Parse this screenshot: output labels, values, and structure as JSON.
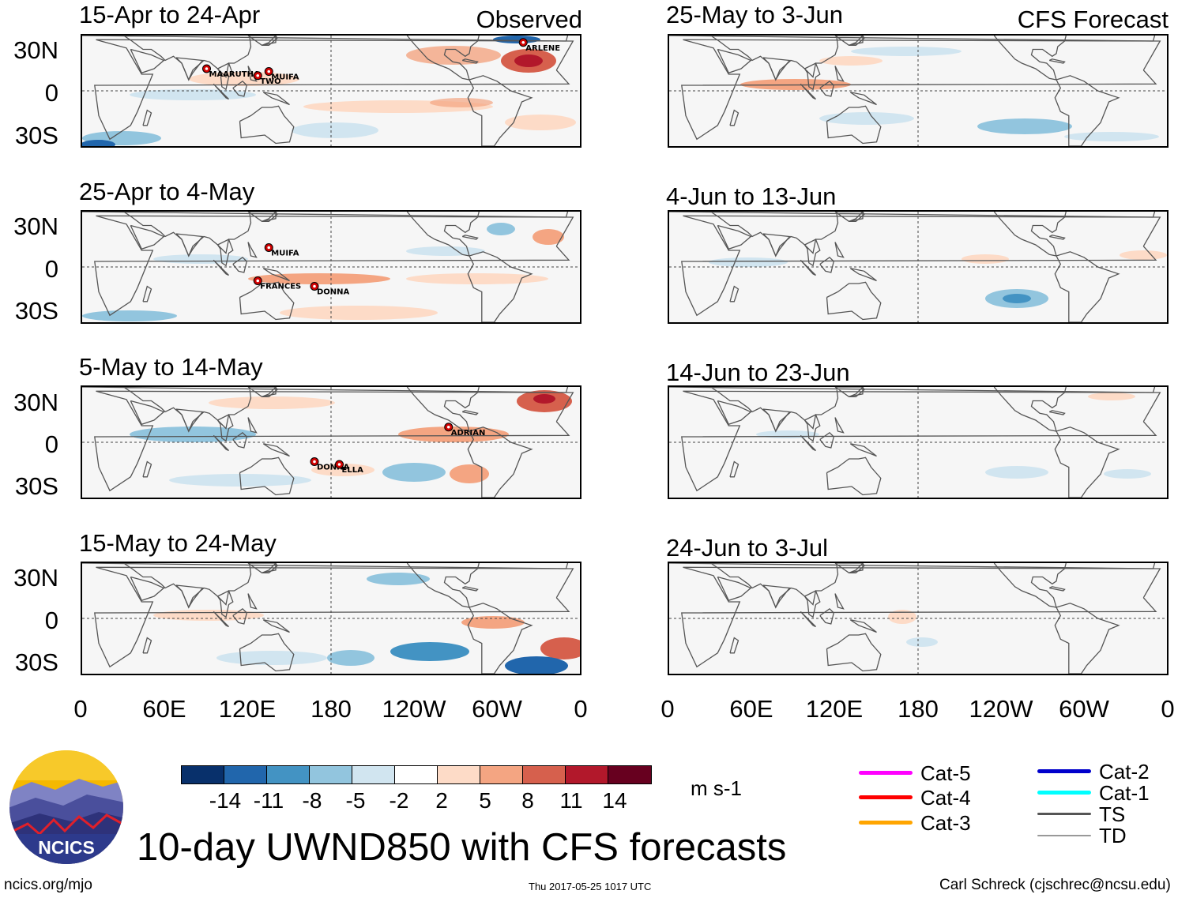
{
  "figure": {
    "title": "10-day UWND850 with CFS forecasts",
    "observed_label": "Observed",
    "forecast_label": "CFS Forecast",
    "units": "m s-1",
    "site": "ncics.org/mjo",
    "timestamp": "Thu 2017-05-25 1017 UTC",
    "author": "Carl Schreck (cjschrec@ncsu.edu)",
    "logo_text": "NCICS"
  },
  "axes": {
    "lat_labels": [
      "30N",
      "0",
      "30S"
    ],
    "lon_labels": [
      "0",
      "60E",
      "120E",
      "180",
      "120W",
      "60W",
      "0"
    ]
  },
  "observed_panels": [
    {
      "period": "15-Apr to 24-Apr",
      "storms": [
        "MAARUTHA",
        "TWO",
        "MUIFA",
        "ARLENE"
      ]
    },
    {
      "period": "25-Apr to 4-May",
      "storms": [
        "MUIFA",
        "FRANCES",
        "DONNA"
      ]
    },
    {
      "period": "5-May to 14-May",
      "storms": [
        "ADRIAN",
        "DONNA",
        "ELLA"
      ]
    },
    {
      "period": "15-May to 24-May",
      "storms": []
    }
  ],
  "forecast_panels": [
    {
      "period": "25-May to 3-Jun"
    },
    {
      "period": "4-Jun to 13-Jun"
    },
    {
      "period": "14-Jun to 23-Jun"
    },
    {
      "period": "24-Jun to 3-Jul"
    }
  ],
  "colorbar": {
    "ticks": [
      "-14",
      "-11",
      "-8",
      "-5",
      "-2",
      "2",
      "5",
      "8",
      "11",
      "14"
    ],
    "colors": [
      "#08306b",
      "#2166ac",
      "#4393c3",
      "#92c5de",
      "#d1e5f0",
      "#ffffff",
      "#fddbc7",
      "#f4a582",
      "#d6604d",
      "#b2182b",
      "#67001f"
    ]
  },
  "legend": {
    "items": [
      {
        "label": "Cat-5",
        "color": "#ff00ff"
      },
      {
        "label": "Cat-4",
        "color": "#ff0000"
      },
      {
        "label": "Cat-3",
        "color": "#ffa500"
      },
      {
        "label": "Cat-2",
        "color": "#0000cc"
      },
      {
        "label": "Cat-1",
        "color": "#00ffff"
      },
      {
        "label": "TS",
        "color": "#555555"
      },
      {
        "label": "TD",
        "color": "#999999"
      }
    ]
  }
}
